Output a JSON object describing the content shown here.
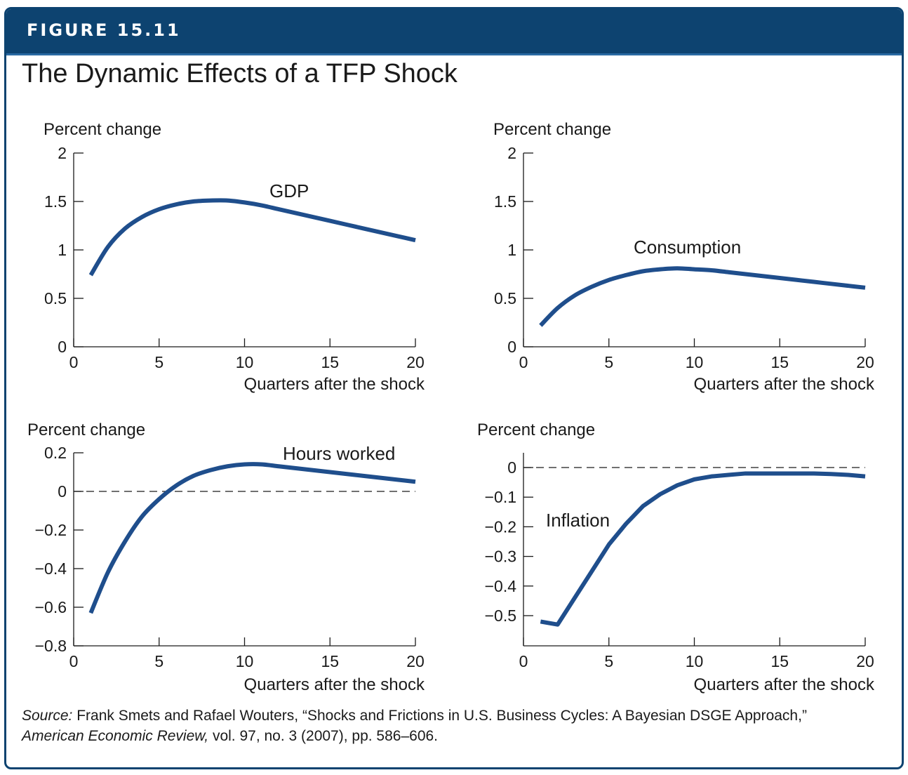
{
  "figure_label": "FIGURE 15.11",
  "title": "The Dynamic Effects of a TFP Shock",
  "source": {
    "label": "Source:",
    "text_1": " Frank Smets and Rafael Wouters, “Shocks and Frictions in U.S. Business Cycles: A Bayesian DSGE Approach,” ",
    "journal": "American Economic Review,",
    "text_2": " vol. 97, no. 3 (2007), pp. 586–606."
  },
  "colors": {
    "header": "#0d4370",
    "line": "#1f4e8c"
  },
  "chart_data": [
    {
      "type": "line",
      "ylabel": "Percent change",
      "xlabel": "Quarters after the shock",
      "series": [
        {
          "name": "GDP",
          "x": [
            1,
            2,
            3,
            4,
            5,
            6,
            7,
            8,
            9,
            10,
            11,
            12,
            13,
            14,
            15,
            16,
            17,
            18,
            19,
            20
          ],
          "values": [
            0.74,
            1.03,
            1.22,
            1.34,
            1.42,
            1.47,
            1.5,
            1.51,
            1.51,
            1.49,
            1.46,
            1.42,
            1.38,
            1.34,
            1.3,
            1.26,
            1.22,
            1.18,
            1.14,
            1.1
          ]
        }
      ],
      "xlim": [
        0,
        20
      ],
      "ylim": [
        0,
        2
      ],
      "xticks": [
        0,
        5,
        10,
        15,
        20
      ],
      "xtick_labels": [
        "0",
        "5",
        "10",
        "15",
        "20"
      ],
      "yticks": [
        0,
        0.5,
        1,
        1.5,
        2
      ],
      "ytick_labels": [
        "0",
        "0.5",
        "1",
        "1.5",
        "2"
      ],
      "zero_line": false
    },
    {
      "type": "line",
      "ylabel": "Percent change",
      "xlabel": "Quarters after the shock",
      "series": [
        {
          "name": "Consumption",
          "x": [
            1,
            2,
            3,
            4,
            5,
            6,
            7,
            8,
            9,
            10,
            11,
            12,
            13,
            14,
            15,
            16,
            17,
            18,
            19,
            20
          ],
          "values": [
            0.22,
            0.4,
            0.53,
            0.62,
            0.69,
            0.74,
            0.78,
            0.8,
            0.81,
            0.8,
            0.79,
            0.77,
            0.75,
            0.73,
            0.71,
            0.69,
            0.67,
            0.65,
            0.63,
            0.61
          ]
        }
      ],
      "xlim": [
        0,
        20
      ],
      "ylim": [
        0,
        2
      ],
      "xticks": [
        0,
        5,
        10,
        15,
        20
      ],
      "xtick_labels": [
        "0",
        "5",
        "10",
        "15",
        "20"
      ],
      "yticks": [
        0,
        0.5,
        1,
        1.5,
        2
      ],
      "ytick_labels": [
        "0",
        "0.5",
        "1",
        "1.5",
        "2"
      ],
      "zero_line": false
    },
    {
      "type": "line",
      "ylabel": "Percent change",
      "xlabel": "Quarters after the shock",
      "series": [
        {
          "name": "Hours worked",
          "x": [
            1,
            2,
            3,
            4,
            5,
            6,
            7,
            8,
            9,
            10,
            11,
            12,
            13,
            14,
            15,
            16,
            17,
            18,
            19,
            20
          ],
          "values": [
            -0.63,
            -0.42,
            -0.26,
            -0.13,
            -0.04,
            0.03,
            0.08,
            0.11,
            0.13,
            0.14,
            0.14,
            0.13,
            0.12,
            0.11,
            0.1,
            0.09,
            0.08,
            0.07,
            0.06,
            0.05
          ]
        }
      ],
      "xlim": [
        0,
        20
      ],
      "ylim": [
        -0.8,
        0.2
      ],
      "xticks": [
        0,
        5,
        10,
        15,
        20
      ],
      "xtick_labels": [
        "0",
        "5",
        "10",
        "15",
        "20"
      ],
      "yticks": [
        -0.8,
        -0.6,
        -0.4,
        -0.2,
        0,
        0.2
      ],
      "ytick_labels": [
        "−0.8",
        "−0.6",
        "−0.4",
        "−0.2",
        "0",
        "0.2"
      ],
      "zero_line": true
    },
    {
      "type": "line",
      "ylabel": "Percent change",
      "xlabel": "Quarters after the shock",
      "series": [
        {
          "name": "Inflation",
          "x": [
            1,
            2,
            3,
            4,
            5,
            6,
            7,
            8,
            9,
            10,
            11,
            12,
            13,
            14,
            15,
            16,
            17,
            18,
            19,
            20
          ],
          "values": [
            -0.52,
            -0.53,
            -0.44,
            -0.35,
            -0.26,
            -0.19,
            -0.13,
            -0.09,
            -0.06,
            -0.04,
            -0.03,
            -0.025,
            -0.02,
            -0.02,
            -0.02,
            -0.02,
            -0.02,
            -0.022,
            -0.025,
            -0.03
          ]
        }
      ],
      "xlim": [
        0,
        20
      ],
      "ylim": [
        -0.6,
        0.03
      ],
      "xticks": [
        0,
        5,
        10,
        15,
        20
      ],
      "xtick_labels": [
        "0",
        "5",
        "10",
        "15",
        "20"
      ],
      "yticks": [
        -0.5,
        -0.4,
        -0.3,
        -0.2,
        -0.1,
        0
      ],
      "ytick_labels": [
        "−0.5",
        "−0.4",
        "−0.3",
        "−0.2",
        "−0.1",
        "0"
      ],
      "zero_line": true
    }
  ]
}
